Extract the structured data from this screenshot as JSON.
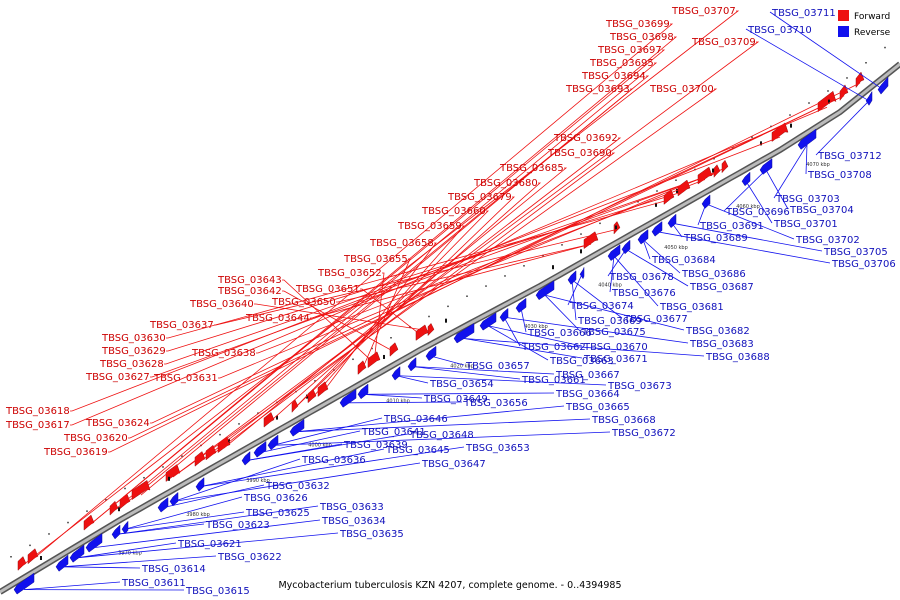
{
  "caption": "Mycobacterium tuberculosis KZN 4207, complete genome. - 0..4394985",
  "legend": [
    {
      "label": "Forward",
      "color": "#ee1111"
    },
    {
      "label": "Reverse",
      "color": "#1111ee"
    }
  ],
  "colors": {
    "forward": "#ee1111",
    "reverse": "#1111ee",
    "backbone": "#888888"
  },
  "ticks": [
    "3970 kbp",
    "3980 kbp",
    "3990 kbp",
    "4000 kbp",
    "4010 kbp",
    "4020 kbp",
    "4030 kbp",
    "4040 kbp",
    "4050 kbp",
    "4060 kbp",
    "4070 kbp"
  ],
  "forward_labels": [
    "TBSG_03707",
    "TBSG_03699",
    "TBSG_03698",
    "TBSG_03697",
    "TBSG_03695",
    "TBSG_03694",
    "TBSG_03693",
    "TBSG_03709",
    "TBSG_03700",
    "TBSG_03692",
    "TBSG_03690",
    "TBSG_03685",
    "TBSG_03680",
    "TBSG_03679",
    "TBSG_03660",
    "TBSG_03659",
    "TBSG_03658",
    "TBSG_03655",
    "TBSG_03652",
    "TBSG_03643",
    "TBSG_03642",
    "TBSG_03651",
    "TBSG_03640",
    "TBSG_03650",
    "TBSG_03644",
    "TBSG_03637",
    "TBSG_03630",
    "TBSG_03629",
    "TBSG_03638",
    "TBSG_03628",
    "TBSG_03627",
    "TBSG_03631",
    "TBSG_03618",
    "TBSG_03617",
    "TBSG_03624",
    "TBSG_03620",
    "TBSG_03619"
  ],
  "reverse_labels": [
    "TBSG_03711",
    "TBSG_03710",
    "TBSG_03712",
    "TBSG_03708",
    "TBSG_03703",
    "TBSG_03704",
    "TBSG_03696",
    "TBSG_03701",
    "TBSG_03691",
    "TBSG_03702",
    "TBSG_03689",
    "TBSG_03705",
    "TBSG_03706",
    "TBSG_03684",
    "TBSG_03686",
    "TBSG_03678",
    "TBSG_03687",
    "TBSG_03676",
    "TBSG_03681",
    "TBSG_03674",
    "TBSG_03677",
    "TBSG_03669",
    "TBSG_03675",
    "TBSG_03682",
    "TBSG_03666",
    "TBSG_03683",
    "TBSG_03662",
    "TBSG_03670",
    "TBSG_03663",
    "TBSG_03671",
    "TBSG_03688",
    "TBSG_03657",
    "TBSG_03661",
    "TBSG_03667",
    "TBSG_03654",
    "TBSG_03673",
    "TBSG_03664",
    "TBSG_03649",
    "TBSG_03656",
    "TBSG_03665",
    "TBSG_03668",
    "TBSG_03646",
    "TBSG_03672",
    "TBSG_03641",
    "TBSG_03648",
    "TBSG_03639",
    "TBSG_03645",
    "TBSG_03653",
    "TBSG_03636",
    "TBSG_03647",
    "TBSG_03632",
    "TBSG_03626",
    "TBSG_03625",
    "TBSG_03633",
    "TBSG_03623",
    "TBSG_03634",
    "TBSG_03635",
    "TBSG_03621",
    "TBSG_03622",
    "TBSG_03614",
    "TBSG_03611",
    "TBSG_03615"
  ]
}
